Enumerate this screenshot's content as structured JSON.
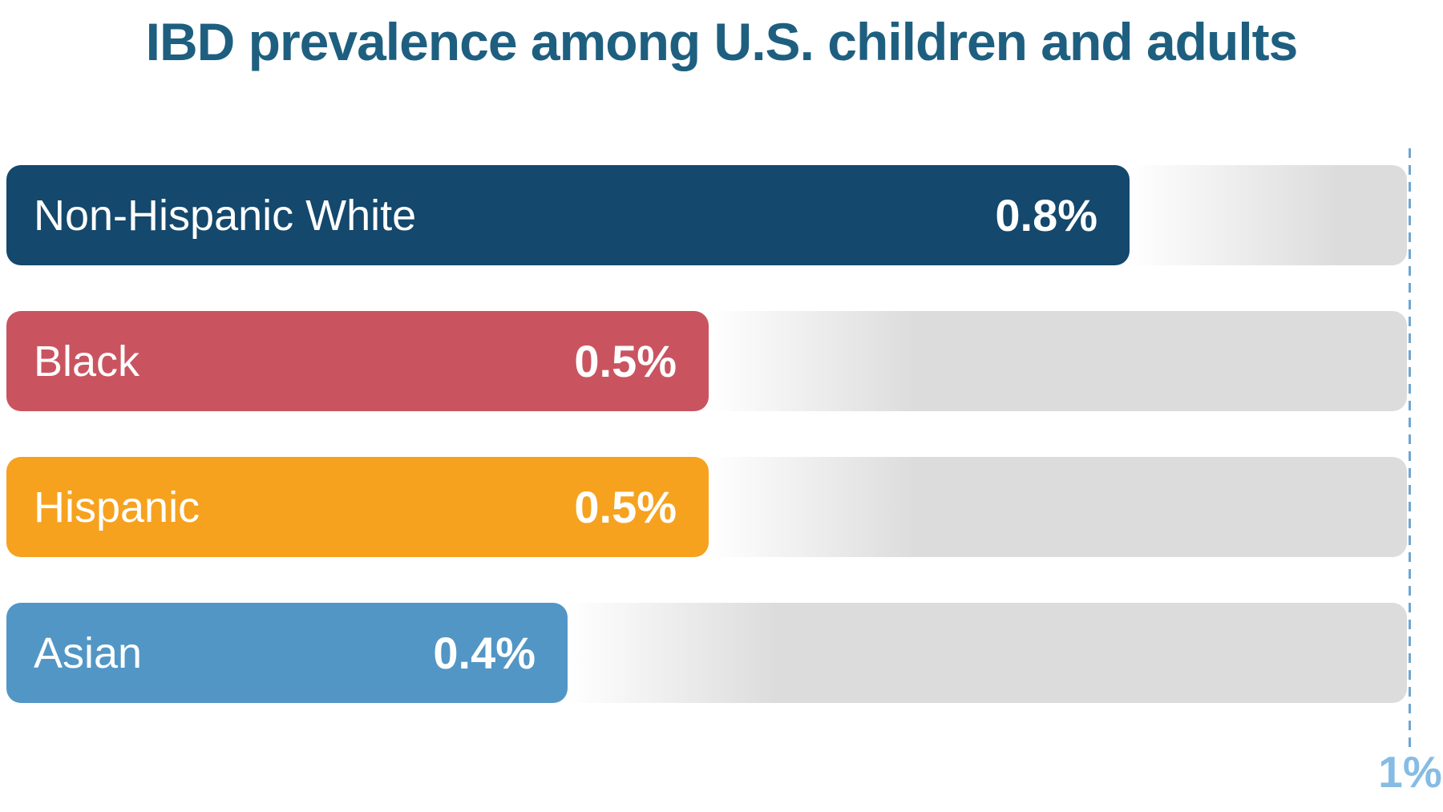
{
  "title": "IBD prevalence among U.S. children and adults",
  "chart_data": {
    "type": "bar",
    "orientation": "horizontal",
    "title": "IBD prevalence among U.S. children and adults",
    "categories": [
      "Non-Hispanic White",
      "Black",
      "Hispanic",
      "Asian"
    ],
    "values": [
      0.8,
      0.5,
      0.5,
      0.4
    ],
    "value_labels": [
      "0.8%",
      "0.5%",
      "0.5%",
      "0.4%"
    ],
    "unit": "%",
    "xlim": [
      0,
      1
    ],
    "grid": false,
    "legend": false,
    "axis_marker": {
      "label": "1%",
      "value": 1
    },
    "bar_colors": [
      "#14486C",
      "#C95460",
      "#F6A21F",
      "#5296C5"
    ],
    "track_color": "#DCDCDC",
    "track_fade_color": "#FFFFFF"
  },
  "colors": {
    "title_text": "#1E5F80",
    "bar_text": "#FFFFFF",
    "dashed_line": "#6FA6D2",
    "axis_label_text": "#86BCE4",
    "background": "#FFFFFF"
  }
}
